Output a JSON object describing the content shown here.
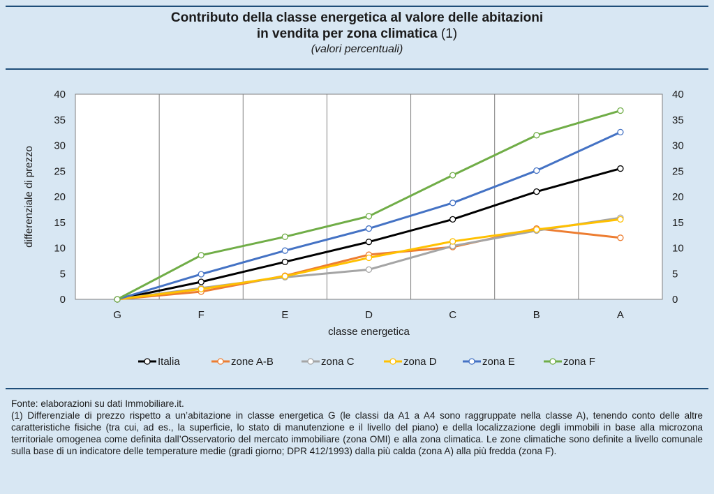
{
  "header": {
    "title_line1": "Contributo della classe energetica al valore delle abitazioni",
    "title_line2": "in vendita per zona climatica",
    "title_note": "(1)",
    "subtitle": "(valori percentuali)"
  },
  "chart_data": {
    "type": "line",
    "xlabel": "classe energetica",
    "ylabel": "differenziale di prezzo",
    "categories": [
      "G",
      "F",
      "E",
      "D",
      "C",
      "B",
      "A"
    ],
    "ylim": [
      0,
      40
    ],
    "yticks": [
      0,
      5,
      10,
      15,
      20,
      25,
      30,
      35,
      40
    ],
    "legend_position": "bottom",
    "grid": true,
    "series": [
      {
        "name": "Italia",
        "color": "#000000",
        "values": [
          0,
          3.4,
          7.3,
          11.2,
          15.6,
          21.0,
          25.5
        ]
      },
      {
        "name": "zone A-B",
        "color": "#ed7d31",
        "values": [
          0,
          1.5,
          4.6,
          8.7,
          10.2,
          13.8,
          12.0
        ]
      },
      {
        "name": "zona C",
        "color": "#a5a5a5",
        "values": [
          0,
          2.2,
          4.3,
          5.8,
          10.4,
          13.4,
          15.9
        ]
      },
      {
        "name": "zona D",
        "color": "#ffc000",
        "values": [
          0,
          2.0,
          4.5,
          8.1,
          11.3,
          13.6,
          15.6
        ]
      },
      {
        "name": "zona E",
        "color": "#4472c4",
        "values": [
          0,
          4.9,
          9.5,
          13.8,
          18.8,
          25.1,
          32.6
        ]
      },
      {
        "name": "zona F",
        "color": "#70ad47",
        "values": [
          0,
          8.6,
          12.2,
          16.2,
          24.2,
          32.0,
          36.8
        ]
      }
    ]
  },
  "footer": {
    "source": "Fonte: elaborazioni su dati Immobiliare.it.",
    "note": "(1) Differenziale di prezzo rispetto a un’abitazione in classe energetica G (le classi da A1 a A4 sono raggruppate nella classe A), tenendo conto delle altre caratteristiche fisiche (tra cui, ad es., la superficie, lo stato di manutenzione e il livello del piano) e della localizzazione degli immobili in base alla microzona territoriale omogenea come definita dall’Osservatorio del mercato immobiliare (zona OMI) e alla zona climatica. Le zone climatiche sono definite a livello comunale sulla base di un indicatore delle temperature medie (gradi giorno; DPR 412/1993) dalla più calda (zona A) alla più fredda (zona F)."
  }
}
